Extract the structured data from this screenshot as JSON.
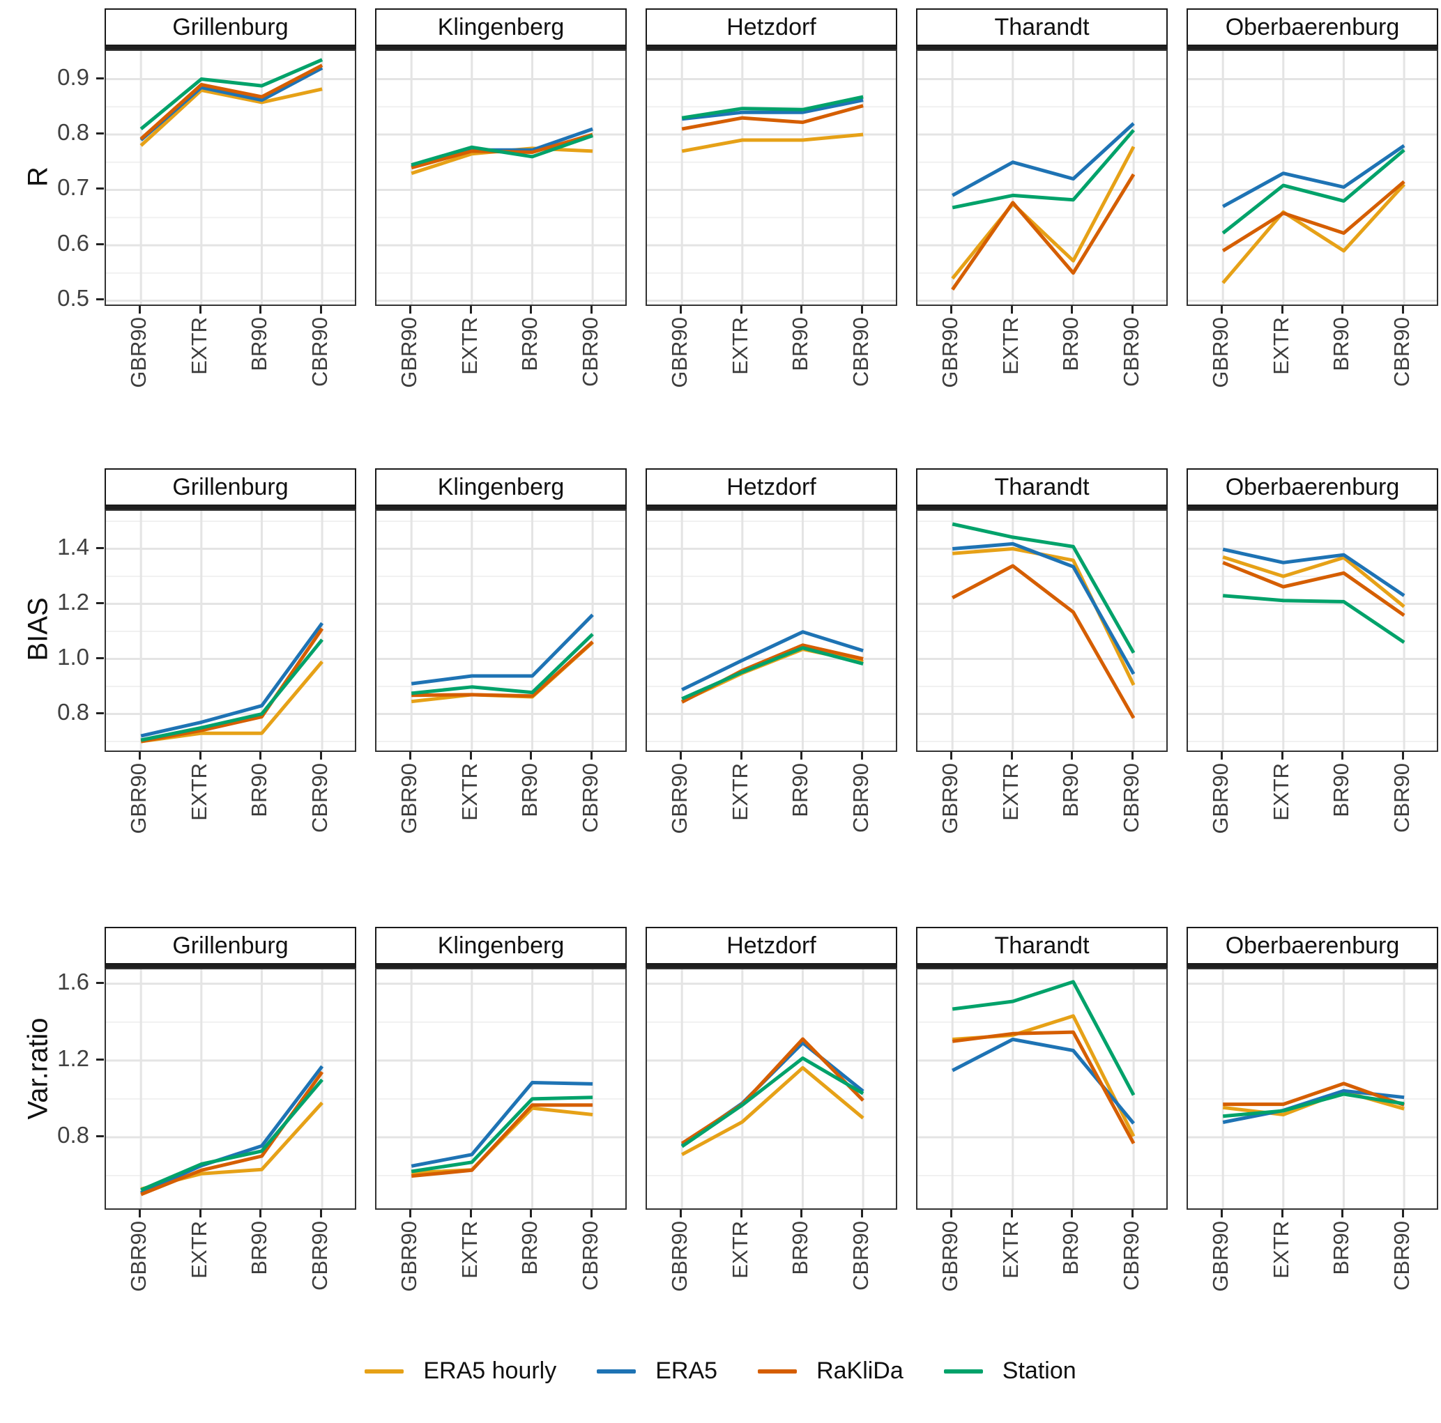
{
  "figure": {
    "background": "#ffffff",
    "categories": [
      "GBR90",
      "EXTR",
      "BR90",
      "CBR90"
    ],
    "facet_titles": [
      "Grillenburg",
      "Klingenberg",
      "Hetzdorf",
      "Tharandt",
      "Oberbaerenburg"
    ],
    "series_meta": [
      {
        "name": "ERA5 hourly",
        "color": "#E6A117"
      },
      {
        "name": "ERA5",
        "color": "#1E73B4"
      },
      {
        "name": "RaKliDa",
        "color": "#D55E00"
      },
      {
        "name": "Station",
        "color": "#00A26A"
      }
    ],
    "grid": {
      "major_color": "#e4e4e4",
      "minor_color": "#f1f1f1",
      "panel_border": "#333333"
    }
  },
  "chart_data": [
    {
      "type": "line",
      "ylabel": "R",
      "legend_position": "bottom",
      "categories": [
        "GBR90",
        "EXTR",
        "BR90",
        "CBR90"
      ],
      "ylim": [
        0.488,
        0.951
      ],
      "yticks": [
        0.5,
        0.6,
        0.7,
        0.8,
        0.9
      ],
      "ytick_labels": [
        "0.5",
        "0.6",
        "0.7",
        "0.8",
        "0.9"
      ],
      "yticks_minor": [
        0.55,
        0.65,
        0.75,
        0.85,
        0.95
      ],
      "facets": [
        {
          "title": "Grillenburg",
          "series": [
            {
              "name": "ERA5 hourly",
              "values": [
                0.78,
                0.88,
                0.858,
                0.882
              ]
            },
            {
              "name": "ERA5",
              "values": [
                0.79,
                0.885,
                0.862,
                0.92
              ]
            },
            {
              "name": "RaKliDa",
              "values": [
                0.792,
                0.89,
                0.868,
                0.925
              ]
            },
            {
              "name": "Station",
              "values": [
                0.81,
                0.9,
                0.888,
                0.935
              ]
            }
          ]
        },
        {
          "title": "Klingenberg",
          "series": [
            {
              "name": "ERA5 hourly",
              "values": [
                0.73,
                0.765,
                0.775,
                0.77
              ]
            },
            {
              "name": "ERA5",
              "values": [
                0.742,
                0.772,
                0.772,
                0.81
              ]
            },
            {
              "name": "RaKliDa",
              "values": [
                0.74,
                0.77,
                0.768,
                0.8
              ]
            },
            {
              "name": "Station",
              "values": [
                0.745,
                0.777,
                0.76,
                0.798
              ]
            }
          ]
        },
        {
          "title": "Hetzdorf",
          "series": [
            {
              "name": "ERA5 hourly",
              "values": [
                0.77,
                0.79,
                0.79,
                0.8
              ]
            },
            {
              "name": "ERA5",
              "values": [
                0.828,
                0.84,
                0.84,
                0.862
              ]
            },
            {
              "name": "RaKliDa",
              "values": [
                0.81,
                0.83,
                0.822,
                0.852
              ]
            },
            {
              "name": "Station",
              "values": [
                0.83,
                0.847,
                0.845,
                0.868
              ]
            }
          ]
        },
        {
          "title": "Tharandt",
          "series": [
            {
              "name": "ERA5 hourly",
              "values": [
                0.54,
                0.675,
                0.572,
                0.778
              ]
            },
            {
              "name": "ERA5",
              "values": [
                0.69,
                0.75,
                0.72,
                0.82
              ]
            },
            {
              "name": "RaKliDa",
              "values": [
                0.52,
                0.677,
                0.55,
                0.728
              ]
            },
            {
              "name": "Station",
              "values": [
                0.668,
                0.69,
                0.682,
                0.808
              ]
            }
          ]
        },
        {
          "title": "Oberbaerenburg",
          "series": [
            {
              "name": "ERA5 hourly",
              "values": [
                0.532,
                0.66,
                0.59,
                0.71
              ]
            },
            {
              "name": "ERA5",
              "values": [
                0.67,
                0.73,
                0.705,
                0.78
              ]
            },
            {
              "name": "RaKliDa",
              "values": [
                0.59,
                0.658,
                0.622,
                0.715
              ]
            },
            {
              "name": "Station",
              "values": [
                0.622,
                0.708,
                0.68,
                0.772
              ]
            }
          ]
        }
      ]
    },
    {
      "type": "line",
      "ylabel": "BIAS",
      "categories": [
        "GBR90",
        "EXTR",
        "BR90",
        "CBR90"
      ],
      "ylim": [
        0.657,
        1.538
      ],
      "yticks": [
        0.8,
        1.0,
        1.2,
        1.4
      ],
      "ytick_labels": [
        "0.8",
        "1.0",
        "1.2",
        "1.4"
      ],
      "yticks_minor": [
        0.7,
        0.9,
        1.1,
        1.3,
        1.5
      ],
      "facets": [
        {
          "title": "Grillenburg",
          "series": [
            {
              "name": "ERA5 hourly",
              "values": [
                0.7,
                0.73,
                0.73,
                0.99
              ]
            },
            {
              "name": "ERA5",
              "values": [
                0.72,
                0.77,
                0.83,
                1.13
              ]
            },
            {
              "name": "RaKliDa",
              "values": [
                0.7,
                0.74,
                0.79,
                1.11
              ]
            },
            {
              "name": "Station",
              "values": [
                0.705,
                0.75,
                0.8,
                1.07
              ]
            }
          ]
        },
        {
          "title": "Klingenberg",
          "series": [
            {
              "name": "ERA5 hourly",
              "values": [
                0.845,
                0.87,
                0.862,
                1.06
              ]
            },
            {
              "name": "ERA5",
              "values": [
                0.91,
                0.938,
                0.938,
                1.16
              ]
            },
            {
              "name": "RaKliDa",
              "values": [
                0.868,
                0.87,
                0.865,
                1.062
              ]
            },
            {
              "name": "Station",
              "values": [
                0.875,
                0.898,
                0.878,
                1.09
              ]
            }
          ]
        },
        {
          "title": "Hetzdorf",
          "series": [
            {
              "name": "ERA5 hourly",
              "values": [
                0.845,
                0.948,
                1.035,
                0.99
              ]
            },
            {
              "name": "ERA5",
              "values": [
                0.888,
                0.995,
                1.098,
                1.03
              ]
            },
            {
              "name": "RaKliDa",
              "values": [
                0.843,
                0.958,
                1.05,
                1.0
              ]
            },
            {
              "name": "Station",
              "values": [
                0.855,
                0.952,
                1.04,
                0.982
              ]
            }
          ]
        },
        {
          "title": "Tharandt",
          "series": [
            {
              "name": "ERA5 hourly",
              "values": [
                1.383,
                1.4,
                1.358,
                0.905
              ]
            },
            {
              "name": "ERA5",
              "values": [
                1.4,
                1.418,
                1.335,
                0.945
              ]
            },
            {
              "name": "RaKliDa",
              "values": [
                1.222,
                1.338,
                1.17,
                0.785
              ]
            },
            {
              "name": "Station",
              "values": [
                1.49,
                1.442,
                1.408,
                1.022
              ]
            }
          ]
        },
        {
          "title": "Oberbaerenburg",
          "series": [
            {
              "name": "ERA5 hourly",
              "values": [
                1.37,
                1.3,
                1.368,
                1.19
              ]
            },
            {
              "name": "ERA5",
              "values": [
                1.398,
                1.35,
                1.378,
                1.23
              ]
            },
            {
              "name": "RaKliDa",
              "values": [
                1.35,
                1.262,
                1.312,
                1.158
              ]
            },
            {
              "name": "Station",
              "values": [
                1.23,
                1.212,
                1.208,
                1.06
              ]
            }
          ]
        }
      ]
    },
    {
      "type": "line",
      "ylabel": "Var.ratio",
      "categories": [
        "GBR90",
        "EXTR",
        "BR90",
        "CBR90"
      ],
      "ylim": [
        0.415,
        1.675
      ],
      "yticks": [
        0.8,
        1.2,
        1.6
      ],
      "ytick_labels": [
        "0.8",
        "1.2",
        "1.6"
      ],
      "yticks_minor": [
        0.6,
        1.0,
        1.4
      ],
      "facets": [
        {
          "title": "Grillenburg",
          "series": [
            {
              "name": "ERA5 hourly",
              "values": [
                0.53,
                0.61,
                0.632,
                0.98
              ]
            },
            {
              "name": "ERA5",
              "values": [
                0.51,
                0.652,
                0.755,
                1.17
              ]
            },
            {
              "name": "RaKliDa",
              "values": [
                0.502,
                0.628,
                0.702,
                1.14
              ]
            },
            {
              "name": "Station",
              "values": [
                0.525,
                0.66,
                0.728,
                1.1
              ]
            }
          ]
        },
        {
          "title": "Klingenberg",
          "series": [
            {
              "name": "ERA5 hourly",
              "values": [
                0.615,
                0.63,
                0.952,
                0.918
              ]
            },
            {
              "name": "ERA5",
              "values": [
                0.65,
                0.71,
                1.085,
                1.078
              ]
            },
            {
              "name": "RaKliDa",
              "values": [
                0.598,
                0.628,
                0.968,
                0.968
              ]
            },
            {
              "name": "Station",
              "values": [
                0.622,
                0.67,
                1.0,
                1.008
              ]
            }
          ]
        },
        {
          "title": "Hetzdorf",
          "series": [
            {
              "name": "ERA5 hourly",
              "values": [
                0.71,
                0.88,
                1.162,
                0.9
              ]
            },
            {
              "name": "ERA5",
              "values": [
                0.758,
                0.978,
                1.292,
                1.04
              ]
            },
            {
              "name": "RaKliDa",
              "values": [
                0.768,
                0.972,
                1.312,
                0.992
              ]
            },
            {
              "name": "Station",
              "values": [
                0.752,
                0.968,
                1.212,
                1.028
              ]
            }
          ]
        },
        {
          "title": "Tharandt",
          "series": [
            {
              "name": "ERA5 hourly",
              "values": [
                1.31,
                1.332,
                1.432,
                0.805
              ]
            },
            {
              "name": "ERA5",
              "values": [
                1.148,
                1.31,
                1.252,
                0.872
              ]
            },
            {
              "name": "RaKliDa",
              "values": [
                1.3,
                1.34,
                1.348,
                0.768
              ]
            },
            {
              "name": "Station",
              "values": [
                1.468,
                1.508,
                1.61,
                1.02
              ]
            }
          ]
        },
        {
          "title": "Oberbaerenburg",
          "series": [
            {
              "name": "ERA5 hourly",
              "values": [
                0.955,
                0.918,
                1.038,
                0.948
              ]
            },
            {
              "name": "ERA5",
              "values": [
                0.878,
                0.94,
                1.042,
                1.008
              ]
            },
            {
              "name": "RaKliDa",
              "values": [
                0.972,
                0.972,
                1.08,
                0.968
              ]
            },
            {
              "name": "Station",
              "values": [
                0.91,
                0.938,
                1.025,
                0.975
              ]
            }
          ]
        }
      ]
    }
  ]
}
